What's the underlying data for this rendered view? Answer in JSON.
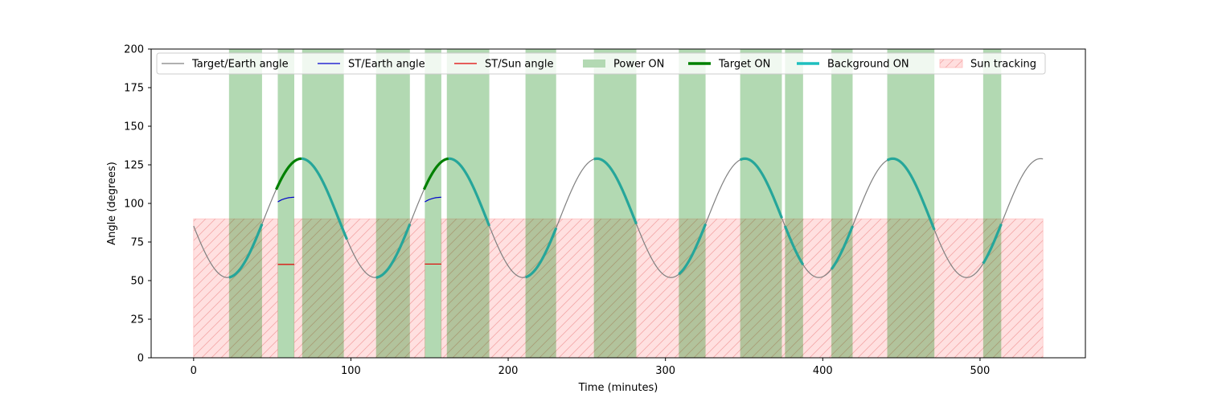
{
  "chart_data": {
    "type": "line",
    "title": "",
    "xlabel": "Time (minutes)",
    "ylabel": "Angle (degrees)",
    "xlim": [
      -27,
      567
    ],
    "ylim": [
      0,
      200
    ],
    "xticks": [
      0,
      100,
      200,
      300,
      400,
      500
    ],
    "yticks": [
      0,
      25,
      50,
      75,
      100,
      125,
      150,
      175,
      200
    ],
    "grid": false,
    "legend_placement": "upper, single row",
    "legend": [
      {
        "label": "Target/Earth angle",
        "kind": "line",
        "color": "#808080"
      },
      {
        "label": "ST/Earth angle",
        "kind": "line",
        "color": "#0000cc"
      },
      {
        "label": "ST/Sun angle",
        "kind": "line",
        "color": "#e00000"
      },
      {
        "label": "Power ON",
        "kind": "patch",
        "color": "#b3d9b3"
      },
      {
        "label": "Target ON",
        "kind": "thickline",
        "color": "#008000"
      },
      {
        "label": "Background ON",
        "kind": "thickline",
        "color": "#1fbfbf"
      },
      {
        "label": "Sun tracking",
        "kind": "hatch",
        "color": "#ffdede"
      }
    ],
    "target_earth_angle": {
      "period": 94,
      "mean": 90.5,
      "amplitude": 38.5,
      "phase_min": 21.5,
      "x_range": [
        0,
        540
      ]
    },
    "power_on": [
      [
        22.5,
        43.5
      ],
      [
        53.5,
        64
      ],
      [
        69,
        95.5
      ],
      [
        116,
        137.5
      ],
      [
        147,
        157.5
      ],
      [
        161,
        188
      ],
      [
        211,
        230.5
      ],
      [
        254.5,
        281.5
      ],
      [
        308.5,
        325.5
      ],
      [
        347.5,
        374
      ],
      [
        376,
        387.5
      ],
      [
        405.5,
        419
      ],
      [
        441,
        471
      ],
      [
        502,
        513.5
      ]
    ],
    "sun_tracking": [
      [
        0,
        53.5
      ],
      [
        64,
        147
      ],
      [
        157.5,
        540
      ]
    ],
    "sun_tracking_max": 90,
    "target_on": [
      [
        52.5,
        68.5
      ],
      [
        146.5,
        162
      ]
    ],
    "background_on": [
      [
        22.5,
        43.5
      ],
      [
        68.5,
        97.5
      ],
      [
        116,
        137.5
      ],
      [
        162,
        188
      ],
      [
        211,
        230.5
      ],
      [
        254.5,
        281.5
      ],
      [
        308.5,
        325.5
      ],
      [
        347.5,
        374
      ],
      [
        376,
        387.5
      ],
      [
        405.5,
        419
      ],
      [
        441,
        471
      ],
      [
        502,
        513.5
      ]
    ],
    "st_earth_angle": [
      {
        "x": [
          53.5,
          54.5,
          55.5,
          56.5,
          57.5,
          58.5,
          59.5,
          60.5,
          61.5,
          62.5,
          63.5,
          64
        ],
        "y": [
          101,
          101.6,
          102.1,
          102.6,
          102.9,
          103.2,
          103.5,
          103.7,
          103.8,
          103.9,
          104,
          104
        ]
      },
      {
        "x": [
          147,
          148,
          149,
          150,
          151,
          152,
          153,
          154,
          155,
          156,
          157,
          157.5
        ],
        "y": [
          101,
          101.6,
          102.1,
          102.6,
          102.9,
          103.2,
          103.5,
          103.7,
          103.8,
          103.9,
          104,
          104
        ]
      }
    ],
    "st_sun_angle": [
      {
        "x": [
          53.5,
          64
        ],
        "y": [
          60.5,
          60.5
        ]
      },
      {
        "x": [
          147,
          157.5
        ],
        "y": [
          60.7,
          60.7
        ]
      }
    ]
  }
}
